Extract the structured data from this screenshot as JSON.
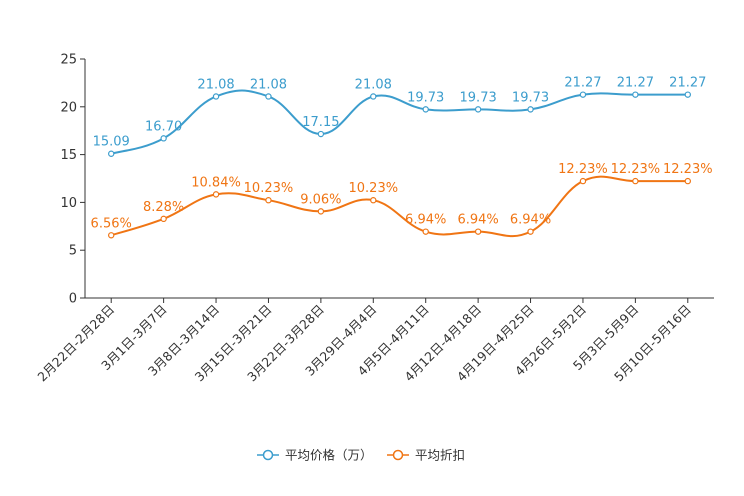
{
  "chart_data": {
    "type": "line",
    "title": "",
    "xlabel": "",
    "ylabel": "",
    "ylim": [
      0,
      25
    ],
    "yticks": [
      0,
      5,
      10,
      15,
      20,
      25
    ],
    "categories": [
      "2月22日-2月28日",
      "3月1日-3月7日",
      "3月8日-3月14日",
      "3月15日-3月21日",
      "3月22日-3月28日",
      "3月29日-4月4日",
      "4月5日-4月11日",
      "4月12日-4月18日",
      "4月19日-4月25日",
      "4月26日-5月2日",
      "5月3日-5月9日",
      "5月10日-5月16日"
    ],
    "series": [
      {
        "name": "平均价格（万）",
        "color": "#3c9dcd",
        "values": [
          15.09,
          16.7,
          21.08,
          21.08,
          17.15,
          21.08,
          19.73,
          19.73,
          19.73,
          21.27,
          21.27,
          21.27
        ],
        "labels": [
          "15.09",
          "16.70",
          "21.08",
          "21.08",
          "17.15",
          "21.08",
          "19.73",
          "19.73",
          "19.73",
          "21.27",
          "21.27",
          "21.27"
        ]
      },
      {
        "name": "平均折扣",
        "color": "#f07514",
        "values": [
          6.56,
          8.28,
          10.84,
          10.23,
          9.06,
          10.23,
          6.94,
          6.94,
          6.94,
          12.23,
          12.23,
          12.23
        ],
        "labels": [
          "6.56%",
          "8.28%",
          "10.84%",
          "10.23%",
          "9.06%",
          "10.23%",
          "6.94%",
          "6.94%",
          "6.94%",
          "12.23%",
          "12.23%",
          "12.23%"
        ]
      }
    ],
    "legend": "bottom-center",
    "grid": false
  }
}
